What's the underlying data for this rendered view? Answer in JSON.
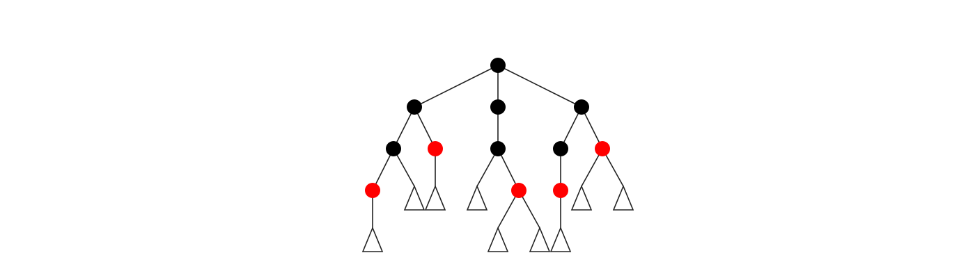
{
  "colors": {
    "background": "#ffffff",
    "edge": "#222222",
    "black_node": "#000000",
    "red_node": "#ff0000",
    "subtree_stroke": "#222222"
  },
  "tree": {
    "root": {
      "color": "black",
      "children": [
        {
          "color": "black",
          "children": [
            {
              "color": "black",
              "children": [
                {
                  "color": "red",
                  "children": [
                    {
                      "subtree": true
                    }
                  ]
                },
                {
                  "subtree": true
                }
              ]
            },
            {
              "color": "red",
              "children": [
                {
                  "subtree": true
                }
              ]
            }
          ]
        },
        {
          "color": "black",
          "children": [
            {
              "color": "black",
              "children": [
                {
                  "subtree": true
                },
                {
                  "color": "red",
                  "children": [
                    {
                      "subtree": true
                    },
                    {
                      "subtree": true
                    }
                  ]
                }
              ]
            }
          ]
        },
        {
          "color": "black",
          "children": [
            {
              "color": "black",
              "children": [
                {
                  "color": "red",
                  "children": [
                    {
                      "subtree": true
                    }
                  ]
                }
              ]
            },
            {
              "color": "red",
              "children": [
                {
                  "subtree": true
                },
                {
                  "subtree": true
                }
              ]
            }
          ]
        }
      ]
    }
  }
}
